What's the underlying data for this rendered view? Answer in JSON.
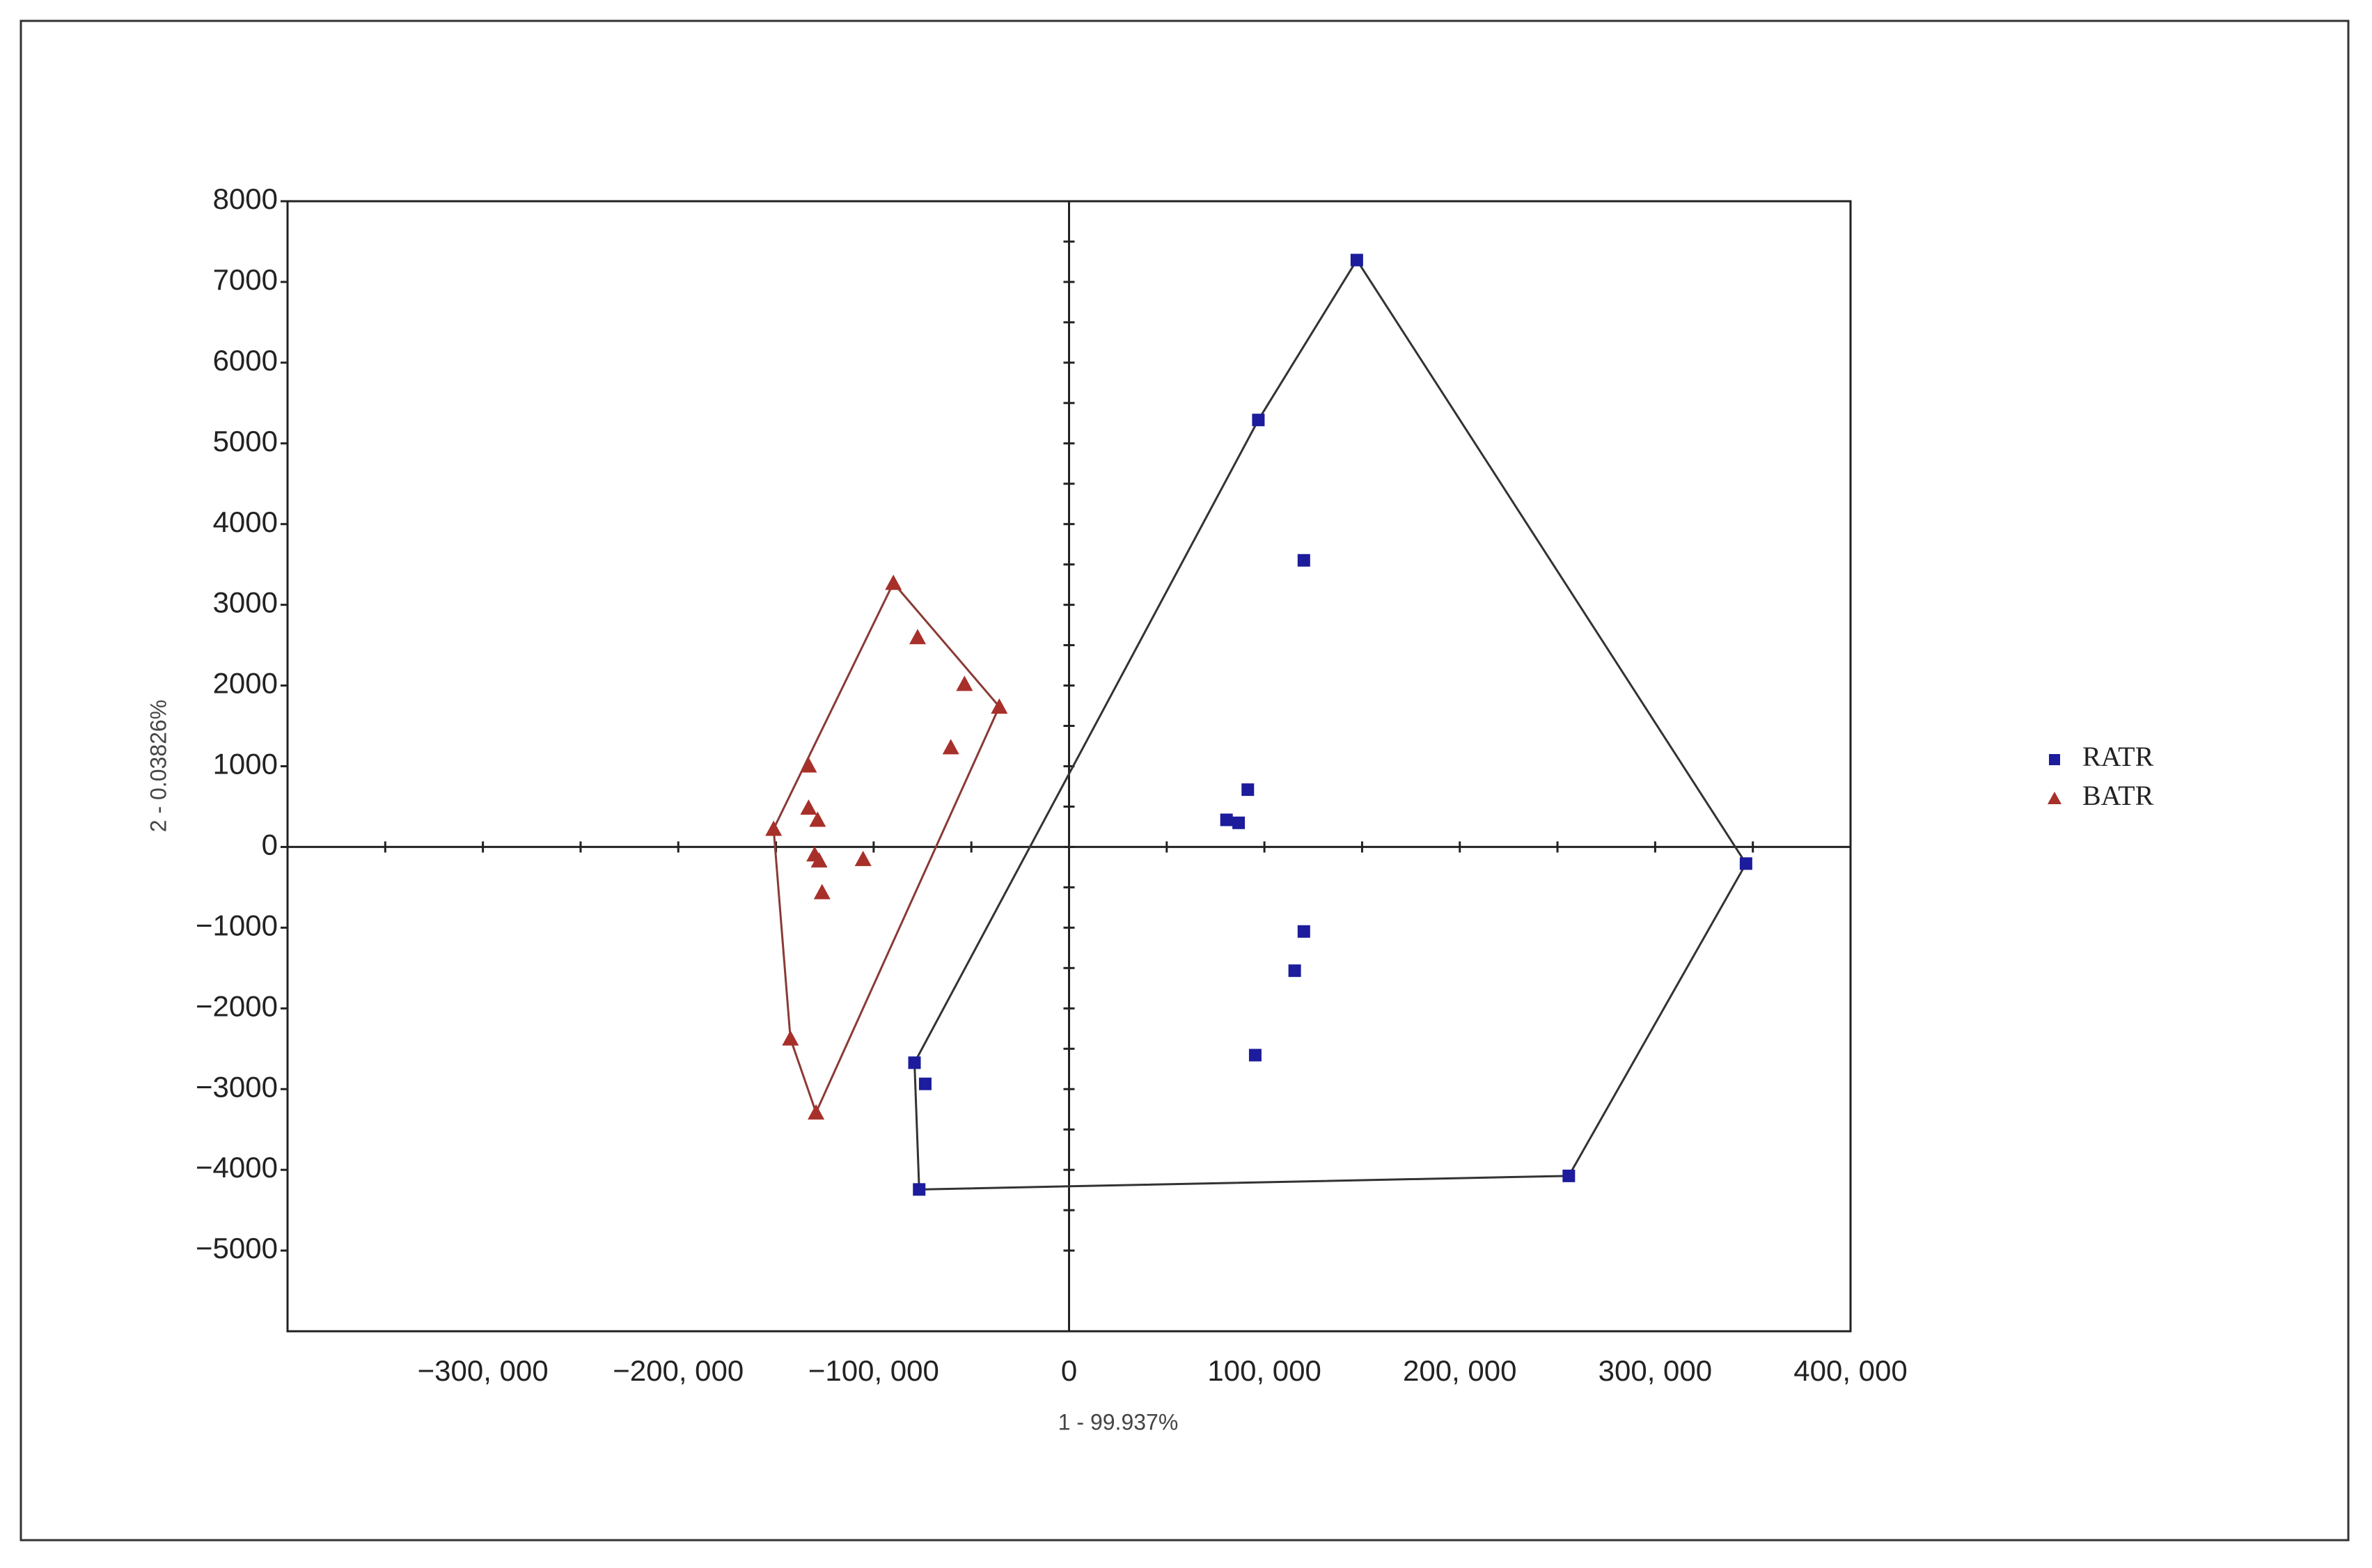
{
  "chart_data": {
    "type": "scatter",
    "x_label": "1 - 99.937%",
    "y_label": "2 - 0.03826%",
    "xlim": [
      -400000,
      400000
    ],
    "ylim": [
      -6000,
      8000
    ],
    "xticks": [
      {
        "value": -300000,
        "label": "−300, 000"
      },
      {
        "value": -200000,
        "label": "−200, 000"
      },
      {
        "value": -100000,
        "label": "−100, 000"
      },
      0,
      {
        "value": 100000,
        "label": "100, 000"
      },
      {
        "value": 200000,
        "label": "200, 000"
      },
      {
        "value": 300000,
        "label": "300, 000"
      },
      {
        "value": 400000,
        "label": "400, 000"
      }
    ],
    "yticks": [
      {
        "value": -5000,
        "label": "−5000"
      },
      {
        "value": -4000,
        "label": "−4000"
      },
      {
        "value": -3000,
        "label": "−3000"
      },
      {
        "value": -2000,
        "label": "−2000"
      },
      {
        "value": -1000,
        "label": "−1000"
      },
      0,
      1000,
      2000,
      3000,
      4000,
      5000,
      6000,
      7000,
      8000
    ],
    "legend": "right",
    "series": [
      {
        "name": "RATR",
        "color": "#1c1c9c",
        "marker": "square",
        "hull_color": "#333333",
        "x": [
          147300,
          96900,
          120200,
          91500,
          80600,
          86800,
          346500,
          120200,
          115500,
          95300,
          -79100,
          -73600,
          -76700,
          255800
        ],
        "values": [
          7271,
          5290,
          3551,
          710,
          336,
          299,
          -206,
          -1047,
          -1533,
          -2579,
          -2673,
          -2935,
          -4243,
          -4075
        ]
      },
      {
        "name": "BATR",
        "color": "#a8302a",
        "marker": "triangle",
        "hull_color": "#8a3a36",
        "x": [
          -89900,
          -77500,
          -53500,
          -35700,
          -60500,
          -133300,
          -133300,
          -128700,
          -151200,
          -130200,
          -127900,
          -105400,
          -126400,
          -142600,
          -129500
        ],
        "values": [
          3271,
          2598,
          2019,
          1738,
          1234,
          1009,
          486,
          336,
          224,
          -93,
          -168,
          -150,
          -561,
          -2374,
          -3290
        ]
      }
    ]
  }
}
